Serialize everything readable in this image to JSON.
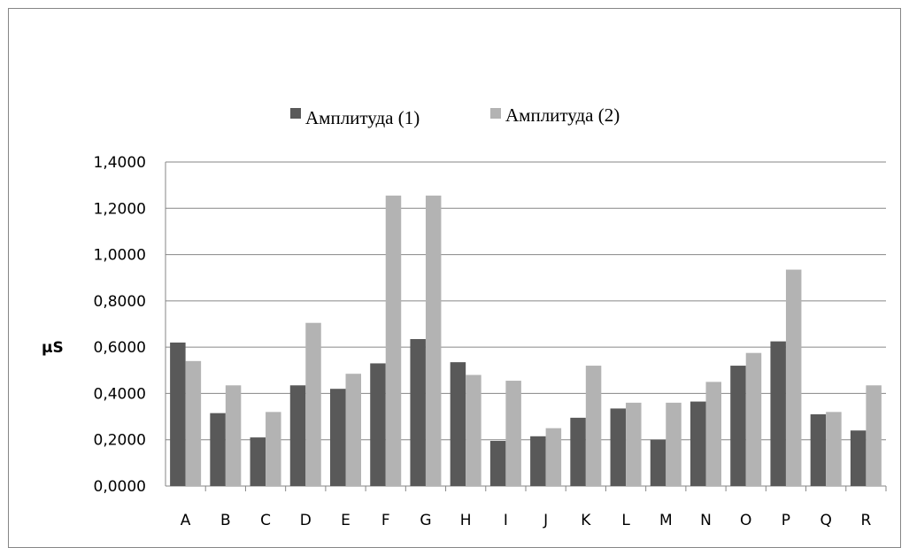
{
  "chart_data": {
    "type": "bar",
    "ylabel": "µS",
    "xlabel": "",
    "ylim": [
      0,
      1.4
    ],
    "yticks": [
      "0,0000",
      "0,2000",
      "0,4000",
      "0,6000",
      "0,8000",
      "1,0000",
      "1,2000",
      "1,4000"
    ],
    "grid": true,
    "legend_position": "top",
    "categories": [
      "A",
      "B",
      "C",
      "D",
      "E",
      "F",
      "G",
      "H",
      "I",
      "J",
      "K",
      "L",
      "M",
      "N",
      "O",
      "P",
      "Q",
      "R"
    ],
    "series": [
      {
        "name": "Амплитуда (1)",
        "color": "#595959",
        "values": [
          0.62,
          0.315,
          0.21,
          0.435,
          0.42,
          0.53,
          0.635,
          0.535,
          0.195,
          0.215,
          0.295,
          0.335,
          0.2,
          0.365,
          0.52,
          0.625,
          0.31,
          0.24
        ]
      },
      {
        "name": "Амплитуда (2)",
        "color": "#b3b3b3",
        "values": [
          0.54,
          0.435,
          0.32,
          0.705,
          0.485,
          1.255,
          1.255,
          0.48,
          0.455,
          0.25,
          0.52,
          0.36,
          0.36,
          0.45,
          0.575,
          0.935,
          0.32,
          0.435
        ]
      }
    ]
  }
}
